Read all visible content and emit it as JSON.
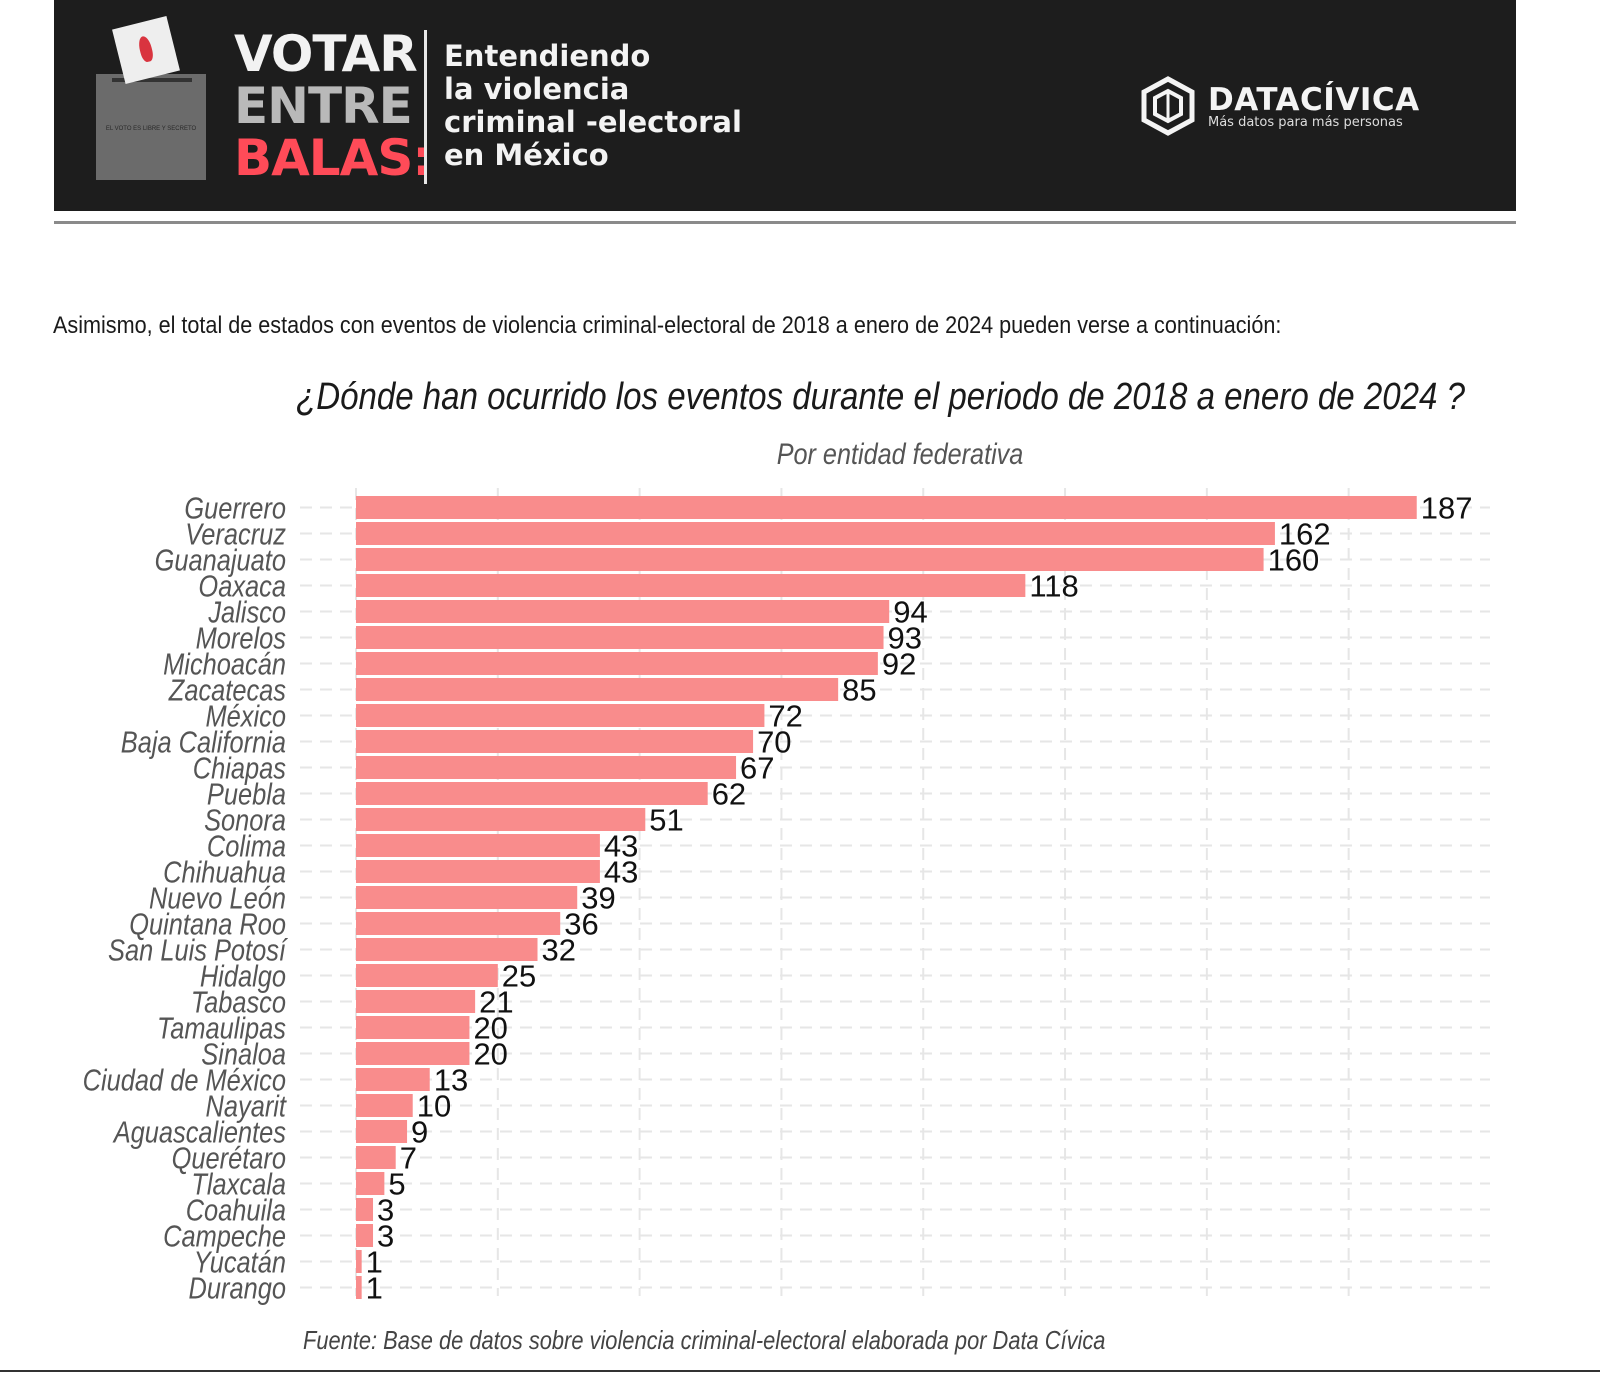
{
  "header": {
    "headline": [
      "VOTAR",
      "ENTRE",
      "BALAS:"
    ],
    "ballot_text": "EL VOTO ES LIBRE Y SECRETO",
    "subtitle_lines": [
      "Entendiendo",
      "la violencia",
      "criminal -electoral",
      "en México"
    ],
    "logo": {
      "name": "DATACÍVICA",
      "tagline": "Más datos para más personas",
      "icon": "datacivica-logo-icon"
    }
  },
  "intro_text": "Asimismo, el total de estados con eventos de violencia criminal-electoral de 2018 a enero de 2024 pueden verse a continuación:",
  "source_note": "Fuente: Base de datos sobre violencia criminal-electoral elaborada por Data Cívica",
  "colors": {
    "bar": "#f98c8c",
    "banner": "#1d1d1d",
    "headline_accent": "#ff4b58"
  },
  "chart_data": {
    "type": "bar",
    "orientation": "horizontal",
    "title": "¿Dónde han ocurrido los eventos durante el periodo de 2018 a enero de 2024 ?",
    "subtitle": "Por entidad federativa",
    "xlabel": "",
    "ylabel": "",
    "xlim": [
      0,
      195
    ],
    "grid": true,
    "legend": "none",
    "categories": [
      "Guerrero",
      "Veracruz",
      "Guanajuato",
      "Oaxaca",
      "Jalisco",
      "Morelos",
      "Michoacán",
      "Zacatecas",
      "México",
      "Baja California",
      "Chiapas",
      "Puebla",
      "Sonora",
      "Colima",
      "Chihuahua",
      "Nuevo León",
      "Quintana Roo",
      "San Luis Potosí",
      "Hidalgo",
      "Tabasco",
      "Tamaulipas",
      "Sinaloa",
      "Ciudad de México",
      "Nayarit",
      "Aguascalientes",
      "Querétaro",
      "Tlaxcala",
      "Coahuila",
      "Campeche",
      "Yucatán",
      "Durango"
    ],
    "values": [
      187,
      162,
      160,
      118,
      94,
      93,
      92,
      85,
      72,
      70,
      67,
      62,
      51,
      43,
      43,
      39,
      36,
      32,
      25,
      21,
      20,
      20,
      13,
      10,
      9,
      7,
      5,
      3,
      3,
      1,
      1
    ],
    "value_labels": [
      "187",
      "162",
      "160",
      "118",
      "94",
      "93",
      "92",
      "85",
      "72",
      "70",
      "67",
      "62",
      "51",
      "43",
      "43",
      "39",
      "36",
      "32",
      "25",
      "21",
      "20",
      "20",
      "13",
      "10",
      "9",
      "7",
      "5",
      "3",
      "3",
      "1",
      "1"
    ]
  }
}
